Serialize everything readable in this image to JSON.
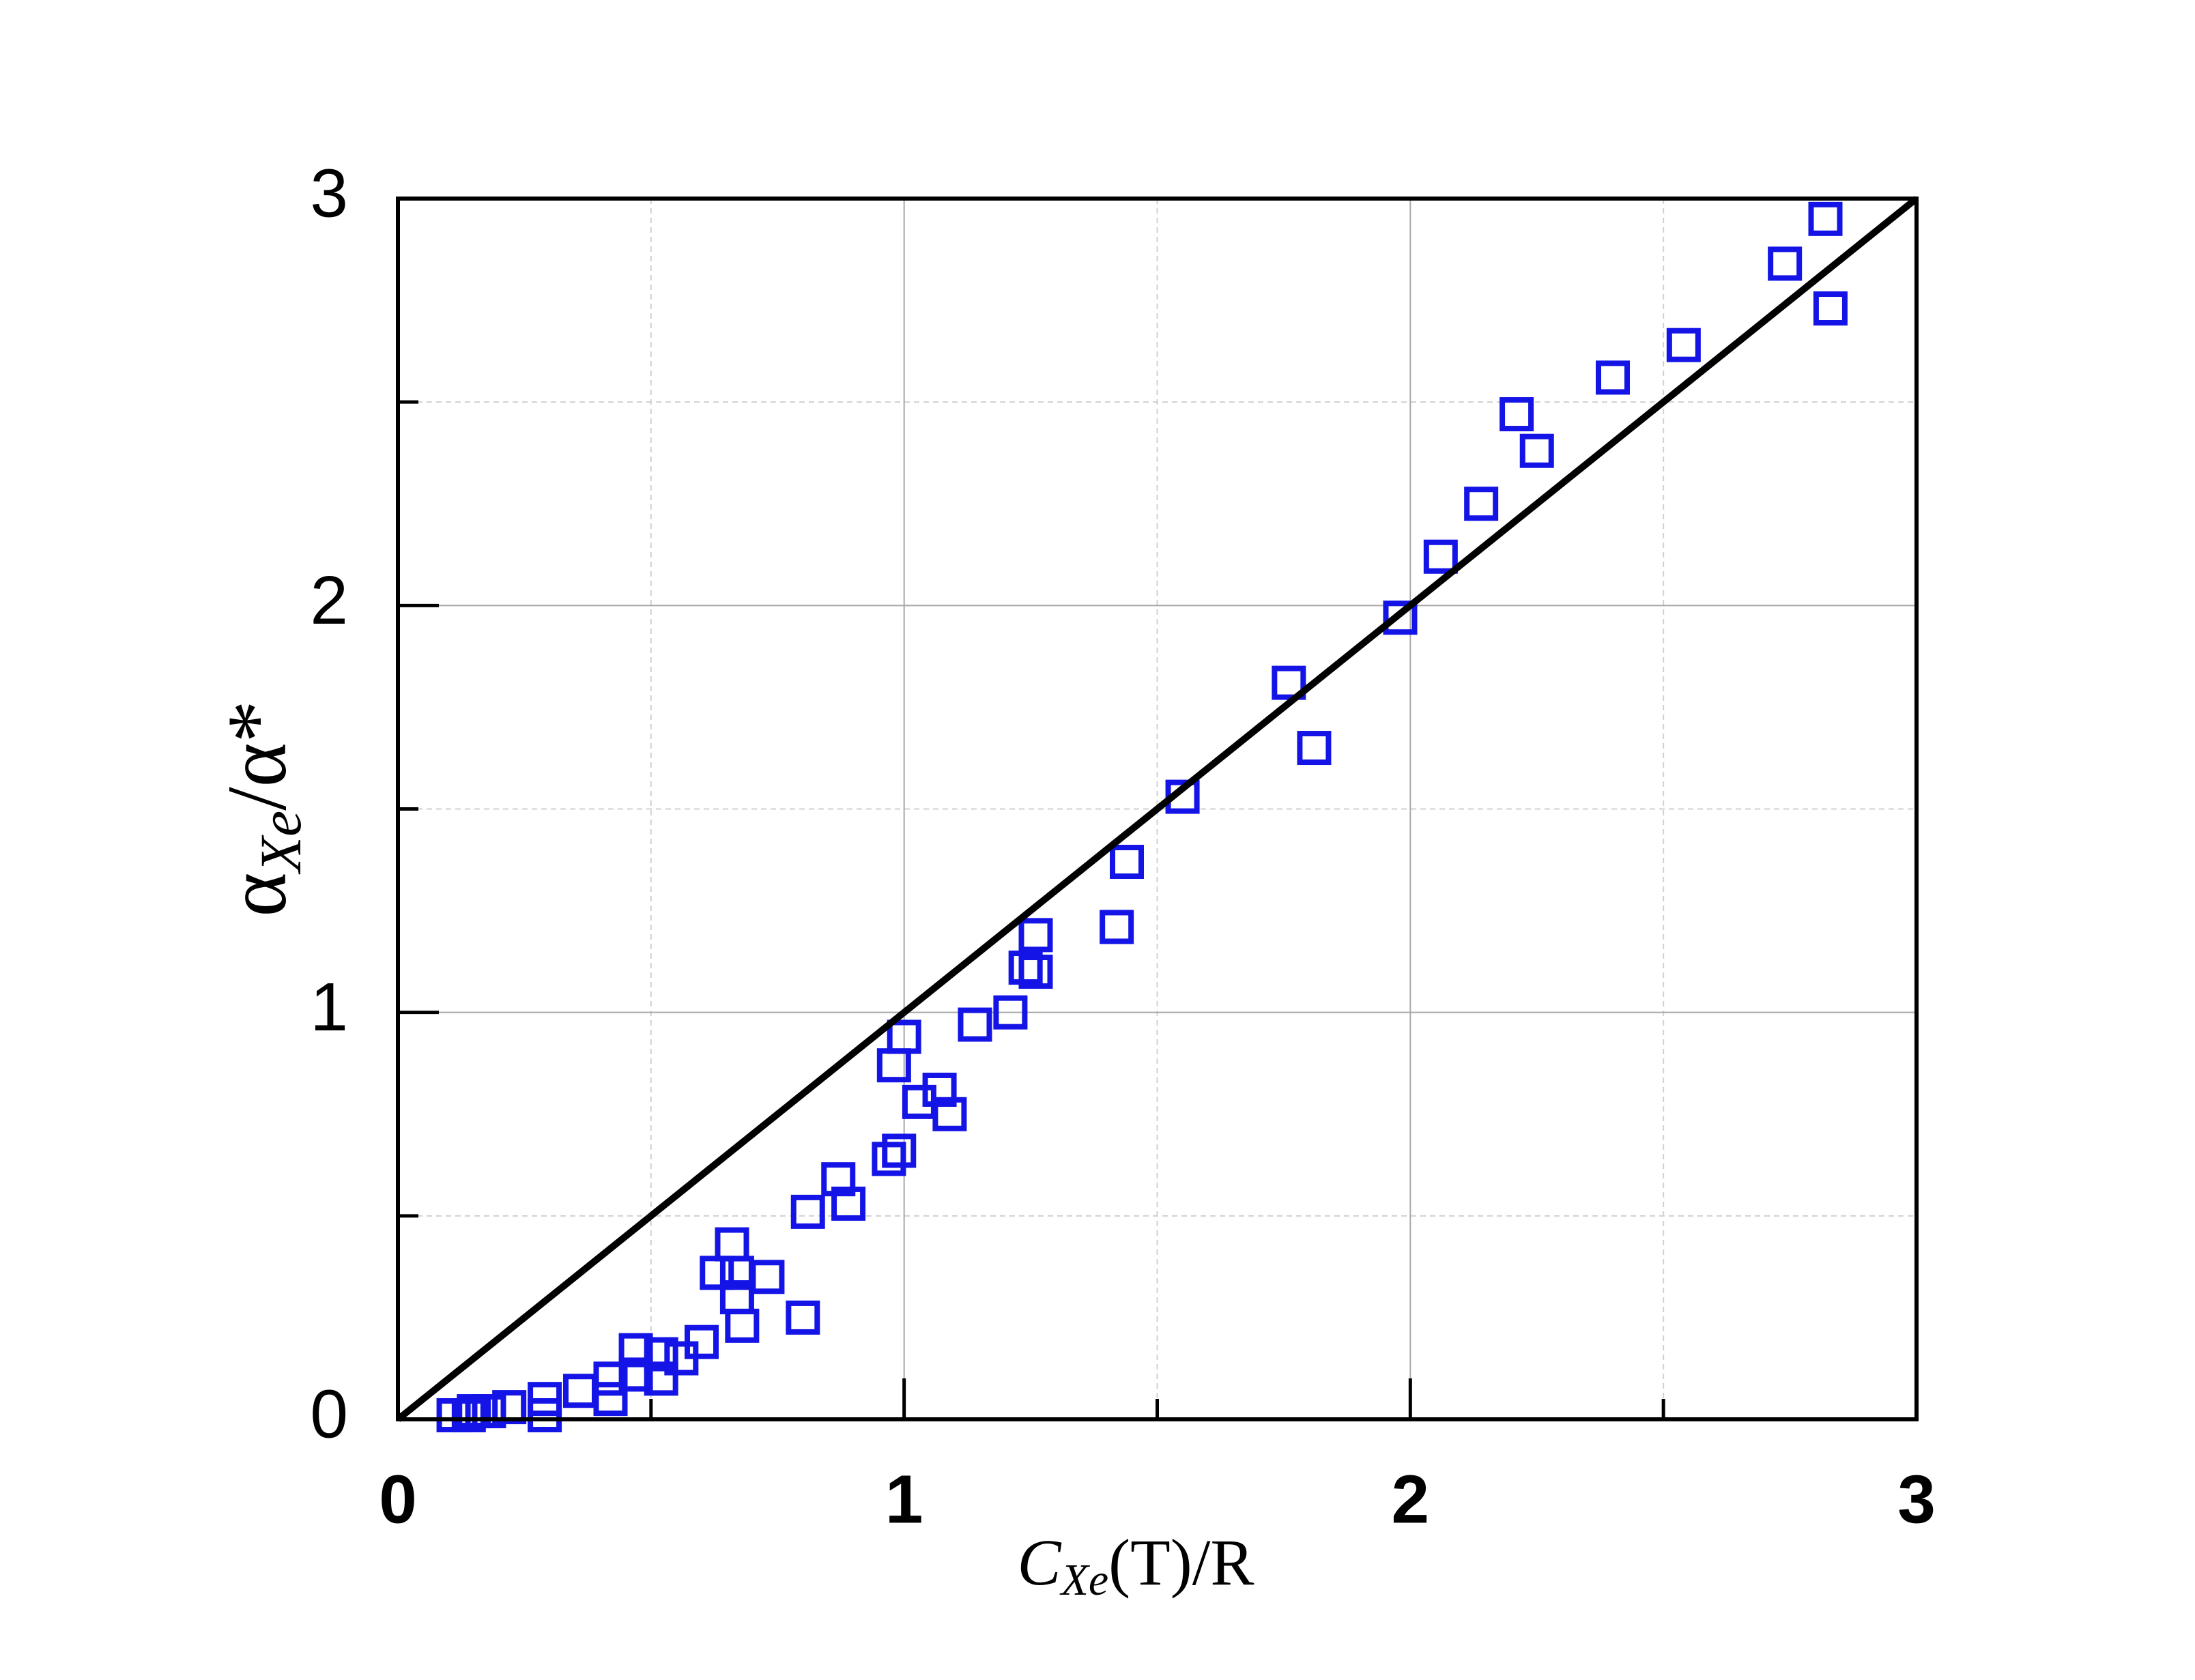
{
  "chart_data": {
    "type": "scatter",
    "xlabel": {
      "base": "C",
      "sub": "Xe",
      "rest": "(T)/R"
    },
    "ylabel": {
      "base": "α",
      "sub": "Xe",
      "rest": "/α*"
    },
    "xlim": [
      0,
      3
    ],
    "ylim": [
      0,
      3
    ],
    "xticks": [
      0,
      1,
      2,
      3
    ],
    "yticks": [
      0,
      1,
      2,
      3
    ],
    "minor_xticks": [
      0.5,
      1.5,
      2.5
    ],
    "minor_yticks": [
      0.5,
      1.5,
      2.5
    ],
    "grid": true,
    "series": [
      {
        "type": "scatter",
        "color": "#1414e6",
        "x": [
          0.11,
          0.14,
          0.15,
          0.18,
          0.22,
          0.29,
          0.29,
          0.36,
          0.42,
          0.42,
          0.47,
          0.47,
          0.52,
          0.52,
          0.56,
          0.6,
          0.63,
          0.66,
          0.67,
          0.67,
          0.68,
          0.73,
          0.8,
          0.81,
          0.87,
          0.89,
          0.97,
          0.99,
          0.98,
          1.0,
          1.03,
          1.07,
          1.09,
          1.14,
          1.21,
          1.24,
          1.26,
          1.26,
          1.42,
          1.44,
          1.55,
          1.76,
          1.81,
          1.98,
          2.06,
          2.14,
          2.21,
          2.25,
          2.4,
          2.54,
          2.74,
          2.82,
          2.83
        ],
        "values": [
          0.01,
          0.01,
          0.02,
          0.02,
          0.03,
          0.05,
          0.01,
          0.07,
          0.1,
          0.05,
          0.11,
          0.17,
          0.16,
          0.1,
          0.15,
          0.19,
          0.36,
          0.43,
          0.3,
          0.36,
          0.23,
          0.35,
          0.25,
          0.51,
          0.59,
          0.53,
          0.64,
          0.66,
          0.87,
          0.94,
          0.78,
          0.81,
          0.75,
          0.97,
          1.0,
          1.11,
          1.1,
          1.19,
          1.21,
          1.37,
          1.53,
          1.81,
          1.65,
          1.97,
          2.12,
          2.25,
          2.47,
          2.38,
          2.56,
          2.64,
          2.84,
          2.95,
          2.73
        ]
      },
      {
        "type": "line",
        "color": "#000000",
        "x": [
          0,
          3
        ],
        "values": [
          0,
          3
        ]
      }
    ]
  }
}
